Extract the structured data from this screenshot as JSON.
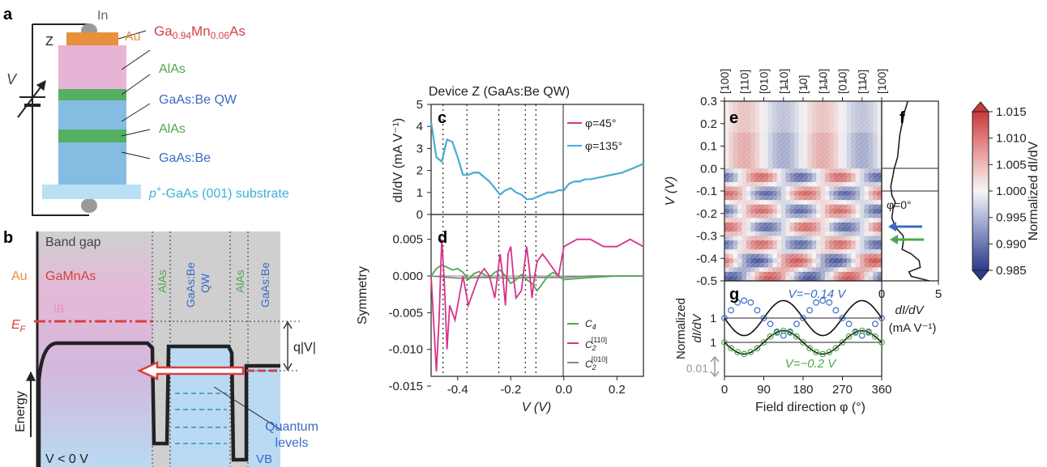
{
  "panel_letters": {
    "a": "a",
    "b": "b",
    "c": "c",
    "d": "d",
    "e": "e",
    "f": "f",
    "g": "g"
  },
  "panel_a": {
    "contact_in": "In",
    "device_z": "Z",
    "voltage": "V",
    "au": "Au",
    "gamnas_main": "Ga",
    "gamnas_sub1": "0.94",
    "gamnas_mn": "Mn",
    "gamnas_sub2": "0.06",
    "gamnas_as": "As",
    "alas1": "AlAs",
    "qw": "GaAs:Be QW",
    "alas2": "AlAs",
    "gaasbe": "GaAs:Be",
    "substrate_p": "p",
    "substrate_plus": "+",
    "substrate_rest": "-GaAs (001) substrate"
  },
  "panel_b": {
    "band_gap": "Band gap",
    "au": "Au",
    "gamnas": "GaMnAs",
    "ib": "IB",
    "ef_main": "E",
    "ef_sub": "F",
    "qv": "q|V|",
    "energy": "Energy",
    "v_cond": "V < 0 V",
    "vb": "VB",
    "quantum_levels_1": "Quantum",
    "quantum_levels_2": "levels",
    "col_alas1": "AlAs",
    "col_qw_1": "GaAs:Be",
    "col_qw_2": "QW",
    "col_alas2": "AlAs",
    "col_gaasbe": "GaAs:Be"
  },
  "panel_cd": {
    "title": "Device Z (GaAs:Be QW)",
    "c_ylabel": "dI/dV (mA V⁻¹)",
    "d_ylabel": "Symmetry",
    "xlabel": "V (V)",
    "c_yticks": [
      "0",
      "1",
      "2",
      "3",
      "4",
      "5"
    ],
    "d_yticks": [
      "0.005",
      "0.000",
      "-0.005",
      "-0.010",
      "-0.015"
    ],
    "xticks": [
      "-0.4",
      "-0.2",
      "0.0",
      "0.2"
    ],
    "legend_c": [
      "φ=45°",
      "φ=135°"
    ],
    "legend_d": [
      "C",
      "4",
      "C",
      "2",
      "[110]",
      "C",
      "2",
      "[010]"
    ]
  },
  "panel_e": {
    "top_labels": [
      "[100]",
      "[110]",
      "[010]",
      "[Ġ10]",
      "[ı 0]",
      "[ıı0]",
      "[0ı0]",
      "[1ı0]",
      "[100]"
    ],
    "top_labels_display": [
      "[100]",
      "[110]",
      "[010]",
      "[1̵10]",
      "[1̵0]",
      "[1̵1̵0]",
      "[01̵0]",
      "[11̵0]",
      "[100]"
    ],
    "ylabel": "V (V)",
    "yticks": [
      "0.3",
      "0.2",
      "0.1",
      "0.0",
      "-0.1",
      "-0.2",
      "-0.3",
      "-0.4",
      "-0.5"
    ]
  },
  "panel_f": {
    "phi0": "φ=0°",
    "xticks": [
      "0",
      "5"
    ],
    "xlabel_1": "dI/dV",
    "xlabel_2": "(mA V⁻¹)"
  },
  "panel_g": {
    "ylabel_1": "Normalized",
    "ylabel_2": "dI/dV",
    "one_top": "1",
    "one_bot": "1",
    "scale": "0.01",
    "v_top": "V=−0.14 V",
    "v_bot": "V=−0.2 V",
    "xticks": [
      "0",
      "90",
      "180",
      "270",
      "360"
    ],
    "xlabel": "Field direction φ (°)"
  },
  "colorbar": {
    "label": "Normalized dI/dV",
    "ticks": [
      "1.015",
      "1.010",
      "1.005",
      "1.000",
      "0.995",
      "0.990",
      "0.985"
    ]
  },
  "colors": {
    "magenta": "#d6338a",
    "cyan": "#3ab3d6",
    "green": "#4ea84e",
    "gray": "#888888",
    "red": "#d94040",
    "blue": "#3b6bc4"
  },
  "chart_data": [
    {
      "type": "line",
      "title": "Device Z (GaAs:Be QW)",
      "ylabel": "dI/dV (mA V^-1)",
      "xlabel": "V (V)",
      "xlim": [
        -0.5,
        0.3
      ],
      "ylim": [
        0,
        5
      ],
      "series": [
        {
          "name": "φ=45°",
          "x": [
            -0.5,
            -0.48,
            -0.46,
            -0.44,
            -0.42,
            -0.4,
            -0.38,
            -0.36,
            -0.34,
            -0.32,
            -0.3,
            -0.28,
            -0.26,
            -0.24,
            -0.22,
            -0.2,
            -0.18,
            -0.16,
            -0.14,
            -0.12,
            -0.1,
            -0.08,
            -0.06,
            -0.04,
            -0.02,
            0.0,
            0.02,
            0.04,
            0.06,
            0.08,
            0.1,
            0.14,
            0.18,
            0.22,
            0.26,
            0.3
          ],
          "y": [
            4.2,
            2.6,
            2.4,
            3.4,
            3.3,
            2.6,
            1.8,
            1.8,
            1.9,
            1.9,
            1.7,
            1.5,
            1.2,
            0.9,
            1.1,
            1.2,
            1.0,
            0.9,
            0.7,
            0.7,
            0.8,
            0.9,
            1.0,
            1.0,
            1.1,
            1.1,
            1.4,
            1.5,
            1.5,
            1.6,
            1.6,
            1.7,
            1.8,
            1.9,
            2.1,
            2.3
          ]
        },
        {
          "name": "φ=135°",
          "x": [
            -0.5,
            -0.48,
            -0.46,
            -0.44,
            -0.42,
            -0.4,
            -0.38,
            -0.36,
            -0.34,
            -0.32,
            -0.3,
            -0.28,
            -0.26,
            -0.24,
            -0.22,
            -0.2,
            -0.18,
            -0.16,
            -0.14,
            -0.12,
            -0.1,
            -0.08,
            -0.06,
            -0.04,
            -0.02,
            0.0,
            0.02,
            0.04,
            0.06,
            0.08,
            0.1,
            0.14,
            0.18,
            0.22,
            0.26,
            0.3
          ],
          "y": [
            4.2,
            2.6,
            2.4,
            3.4,
            3.3,
            2.6,
            1.8,
            1.8,
            1.9,
            1.9,
            1.7,
            1.5,
            1.2,
            0.9,
            1.1,
            1.2,
            1.0,
            0.9,
            0.7,
            0.7,
            0.8,
            0.9,
            1.0,
            1.0,
            1.1,
            1.1,
            1.4,
            1.5,
            1.5,
            1.6,
            1.6,
            1.7,
            1.8,
            1.9,
            2.1,
            2.3
          ]
        }
      ]
    },
    {
      "type": "line",
      "ylabel": "Symmetry",
      "xlabel": "V (V)",
      "xlim": [
        -0.5,
        0.3
      ],
      "ylim": [
        -0.015,
        0.007
      ],
      "series": [
        {
          "name": "C4",
          "x": [
            -0.5,
            -0.48,
            -0.46,
            -0.44,
            -0.42,
            -0.4,
            -0.38,
            -0.36,
            -0.34,
            -0.32,
            -0.3,
            -0.28,
            -0.26,
            -0.24,
            -0.22,
            -0.2,
            -0.18,
            -0.16,
            -0.14,
            -0.12,
            -0.1,
            -0.08,
            -0.06,
            -0.04,
            -0.02,
            0.0,
            0.1,
            0.2,
            0.3
          ],
          "y": [
            0.0,
            0.001,
            0.0015,
            0.0012,
            0.0008,
            0.001,
            0.0005,
            -0.0005,
            0.0003,
            0.0006,
            0.0002,
            -0.0002,
            0.0005,
            0.0008,
            0.0,
            -0.001,
            -0.0005,
            0.0002,
            -0.0005,
            -0.001,
            -0.002,
            -0.001,
            0.0,
            0.0005,
            0.0,
            -0.0005,
            -0.0002,
            0.0,
            0.0
          ]
        },
        {
          "name": "C2[110]",
          "x": [
            -0.5,
            -0.48,
            -0.47,
            -0.46,
            -0.45,
            -0.44,
            -0.43,
            -0.42,
            -0.41,
            -0.4,
            -0.38,
            -0.36,
            -0.34,
            -0.32,
            -0.3,
            -0.28,
            -0.26,
            -0.24,
            -0.23,
            -0.22,
            -0.21,
            -0.2,
            -0.19,
            -0.18,
            -0.16,
            -0.14,
            -0.13,
            -0.12,
            -0.11,
            -0.1,
            -0.08,
            -0.06,
            -0.04,
            -0.02,
            0.0,
            0.05,
            0.1,
            0.15,
            0.2,
            0.25,
            0.3
          ],
          "y": [
            0.0,
            -0.013,
            -0.006,
            0.005,
            -0.001,
            -0.01,
            -0.004,
            -0.005,
            -0.006,
            -0.004,
            0.0,
            -0.004,
            -0.002,
            0.0,
            0.001,
            0.0,
            -0.003,
            0.003,
            0.0,
            -0.004,
            0.003,
            0.004,
            0.0,
            -0.003,
            -0.002,
            0.004,
            0.001,
            -0.003,
            0.0,
            0.002,
            0.003,
            0.002,
            0.001,
            0.0,
            0.004,
            0.005,
            0.005,
            0.004,
            0.004,
            0.005,
            0.004
          ]
        },
        {
          "name": "C2[010]",
          "x": [
            -0.5,
            -0.4,
            -0.3,
            -0.2,
            -0.1,
            0.0,
            0.1,
            0.2,
            0.3
          ],
          "y": [
            0.0,
            -0.0003,
            -0.0002,
            -0.0003,
            -0.0002,
            -0.0002,
            0.0,
            0.0,
            0.0
          ]
        }
      ]
    },
    {
      "type": "heatmap",
      "xlabel": "Field direction φ (°)",
      "ylabel": "V (V)",
      "xlim": [
        0,
        360
      ],
      "ylim": [
        -0.5,
        0.3
      ],
      "colorbar": {
        "label": "Normalized dI/dV",
        "range": [
          0.985,
          1.015
        ]
      }
    },
    {
      "type": "line",
      "xlabel": "dI/dV (mA V^-1)",
      "ylabel": "V (V)",
      "xlim": [
        0,
        5
      ],
      "ylim": [
        -0.5,
        0.3
      ],
      "series": [
        {
          "name": "φ=0°",
          "x": [
            2.3,
            2.0,
            1.8,
            1.6,
            1.5,
            1.4,
            1.1,
            1.0,
            0.8,
            0.9,
            1.2,
            1.0,
            0.9,
            1.2,
            1.9,
            1.9,
            1.8,
            2.6,
            3.3,
            3.4,
            2.4,
            2.6,
            4.2
          ],
          "y": [
            0.3,
            0.25,
            0.2,
            0.15,
            0.1,
            0.05,
            0.0,
            -0.03,
            -0.08,
            -0.12,
            -0.15,
            -0.18,
            -0.22,
            -0.26,
            -0.3,
            -0.33,
            -0.36,
            -0.38,
            -0.41,
            -0.44,
            -0.46,
            -0.48,
            -0.5
          ]
        }
      ]
    },
    {
      "type": "scatter",
      "xlabel": "Field direction φ (°)",
      "ylabel": "Normalized dI/dV",
      "xlim": [
        0,
        360
      ],
      "series": [
        {
          "name": "V=−0.14 V",
          "amplitude": 0.009,
          "x": [
            0,
            15,
            30,
            45,
            60,
            75,
            90,
            105,
            120,
            135,
            150,
            165,
            180,
            195,
            210,
            225,
            240,
            255,
            270,
            285,
            300,
            315,
            330,
            345,
            360
          ],
          "y": [
            1.0,
            1.004,
            1.008,
            1.009,
            1.008,
            1.004,
            1.0,
            0.997,
            0.993,
            0.991,
            0.993,
            0.997,
            1.0,
            1.004,
            1.008,
            1.009,
            1.008,
            1.004,
            1.0,
            0.997,
            0.993,
            0.991,
            0.993,
            0.997,
            1.0
          ]
        },
        {
          "name": "V=−0.2 V",
          "amplitude": 0.006,
          "x": [
            0,
            15,
            30,
            45,
            60,
            75,
            90,
            105,
            120,
            135,
            150,
            165,
            180,
            195,
            210,
            225,
            240,
            255,
            270,
            285,
            300,
            315,
            330,
            345,
            360
          ],
          "y": [
            1.0,
            0.997,
            0.995,
            0.994,
            0.995,
            0.997,
            1.0,
            1.003,
            1.005,
            1.006,
            1.005,
            1.003,
            1.0,
            0.997,
            0.995,
            0.994,
            0.995,
            0.997,
            1.0,
            1.003,
            1.005,
            1.006,
            1.005,
            1.003,
            1.0
          ]
        }
      ]
    }
  ]
}
